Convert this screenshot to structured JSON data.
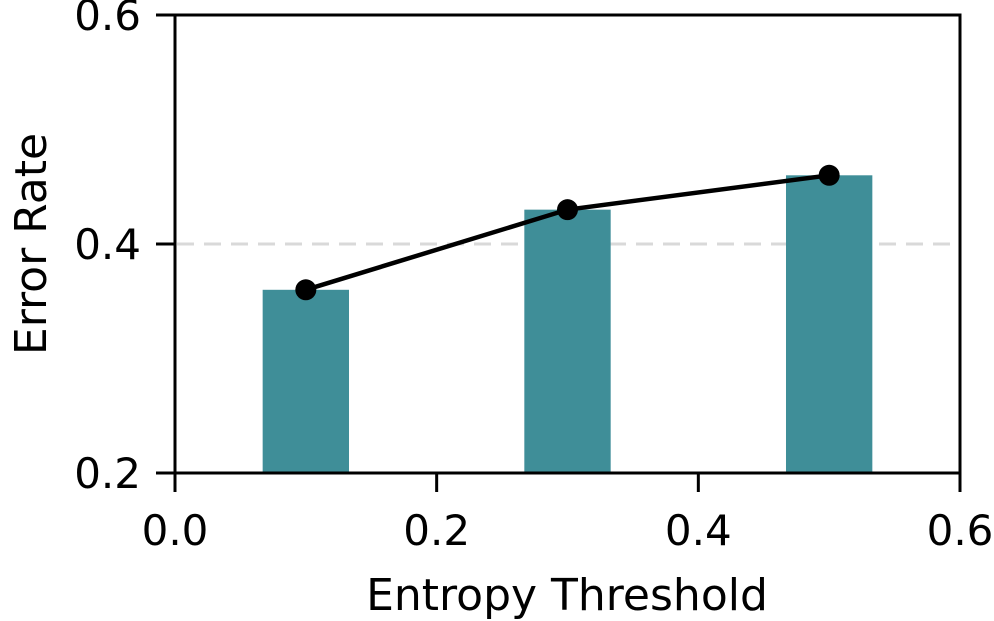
{
  "chart_data": {
    "type": "bar",
    "title": "",
    "xlabel": "Entropy Threshold",
    "ylabel": "Error Rate",
    "x": [
      0.1,
      0.3,
      0.5
    ],
    "values": [
      0.36,
      0.43,
      0.46
    ],
    "bar_width_units": 0.066,
    "series": [
      {
        "name": "error-rate-line",
        "type": "line",
        "marker": "circle",
        "x": [
          0.1,
          0.3,
          0.5
        ],
        "y": [
          0.36,
          0.43,
          0.46
        ]
      }
    ],
    "xlim": [
      0.0,
      0.6
    ],
    "ylim": [
      0.2,
      0.6
    ],
    "x_tick_values": [
      0.0,
      0.2,
      0.4,
      0.6
    ],
    "x_tick_labels": [
      "0.0",
      "0.2",
      "0.4",
      "0.6"
    ],
    "y_tick_values": [
      0.2,
      0.4,
      0.6
    ],
    "y_tick_labels": [
      "0.2",
      "0.4",
      "0.6"
    ],
    "grid": {
      "axis": "y",
      "y_values": [
        0.4
      ],
      "style": "dashed"
    },
    "legend": {
      "visible": false
    },
    "colors": {
      "bar": "#3f8e98",
      "line": "#000000",
      "marker": "#000000",
      "grid": "#d9d9d9",
      "axis": "#000000",
      "text": "#000000",
      "background": "#ffffff"
    }
  }
}
